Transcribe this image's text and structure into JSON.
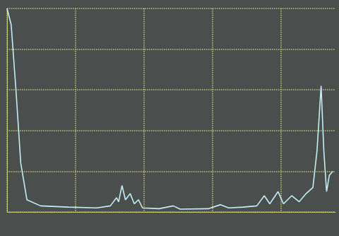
{
  "chart_data": {
    "type": "line",
    "color": "#c4eef5",
    "grid": true,
    "tick_labels": false,
    "x": [
      0,
      0.06,
      0.13,
      0.2,
      0.29,
      0.49,
      0.9,
      1.31,
      1.51,
      1.6,
      1.63,
      1.68,
      1.73,
      1.8,
      1.86,
      1.92,
      1.98,
      2.22,
      2.43,
      2.53,
      2.94,
      3.12,
      3.24,
      3.45,
      3.65,
      3.76,
      3.84,
      3.96,
      4.04,
      4.16,
      4.27,
      4.37,
      4.47,
      4.53,
      4.59,
      4.63,
      4.67,
      4.71,
      4.76
    ],
    "values": [
      5.0,
      4.6,
      3.0,
      1.2,
      0.3,
      0.15,
      0.12,
      0.1,
      0.15,
      0.35,
      0.25,
      0.65,
      0.3,
      0.45,
      0.2,
      0.3,
      0.1,
      0.08,
      0.15,
      0.07,
      0.08,
      0.18,
      0.1,
      0.12,
      0.15,
      0.4,
      0.2,
      0.5,
      0.2,
      0.4,
      0.25,
      0.45,
      0.6,
      1.5,
      3.1,
      1.5,
      0.5,
      0.9,
      1.0
    ],
    "xlim": [
      0,
      4.8
    ],
    "xticks": [
      0,
      1,
      2,
      3,
      4
    ],
    "ylim": [
      0,
      5
    ],
    "yticks": [
      0,
      1,
      2,
      3,
      4,
      5
    ]
  }
}
